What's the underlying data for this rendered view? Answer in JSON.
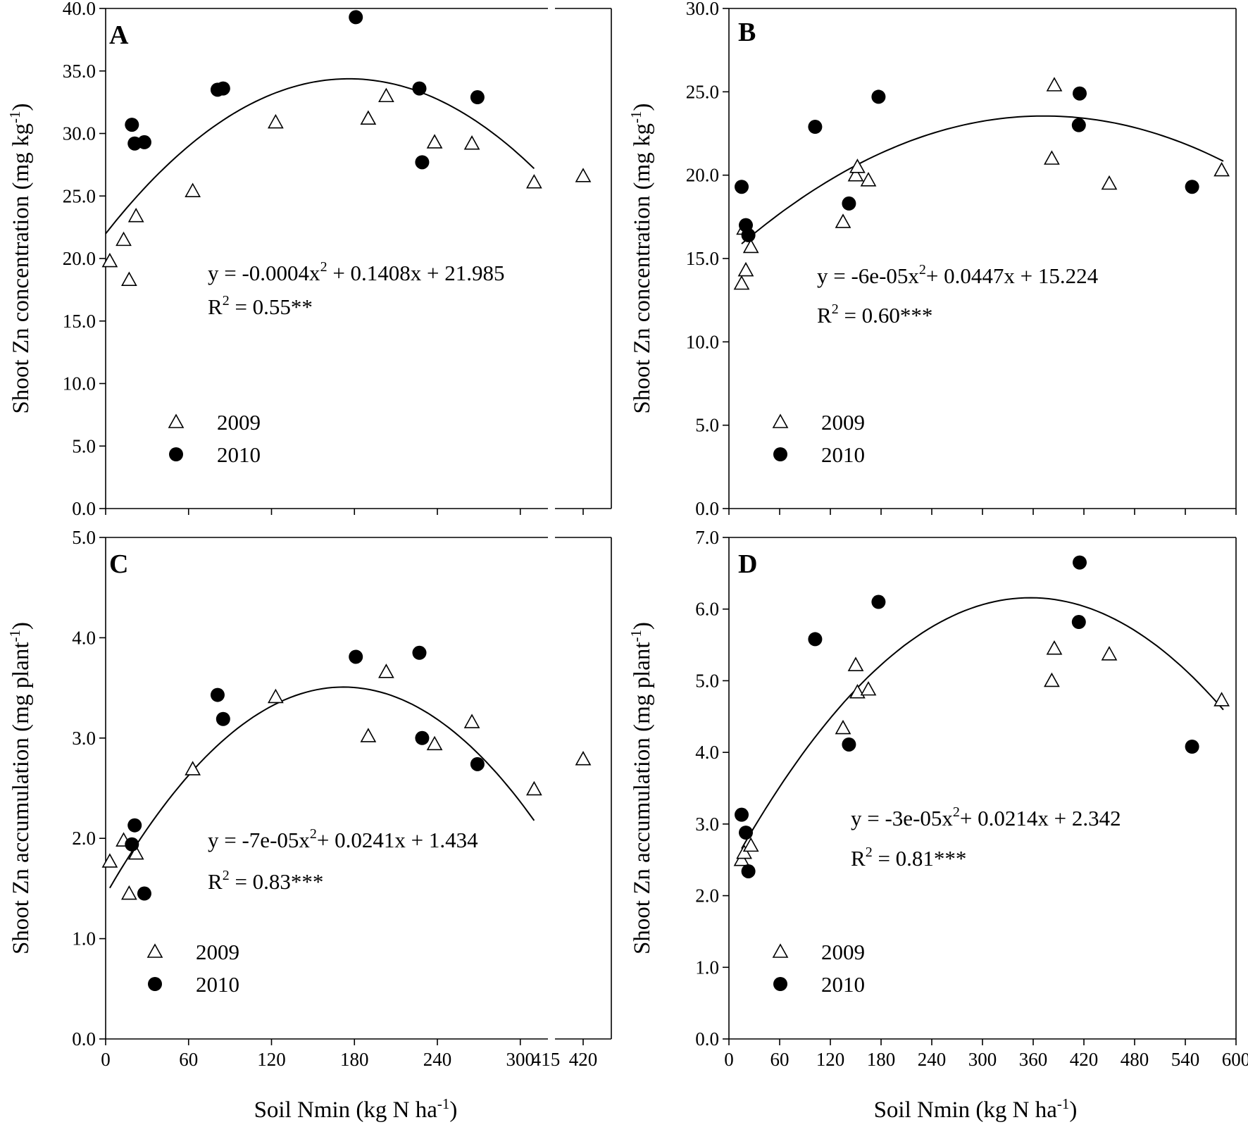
{
  "chart_data": [
    {
      "panel": "A",
      "type": "scatter",
      "ylabel": "Shoot Zn concentration (mg kg-1)",
      "xlabel": "",
      "ylim": [
        0,
        40
      ],
      "yticks": [
        "0.0",
        "5.0",
        "10.0",
        "15.0",
        "20.0",
        "25.0",
        "30.0",
        "35.0",
        "40.0"
      ],
      "xlim": [
        0,
        320
      ],
      "xticks": [
        0,
        60,
        120,
        180,
        240,
        300
      ],
      "break": {
        "label_left": "415",
        "label_right": "420",
        "right_range": [
          410,
          430
        ]
      },
      "equation": "y = -0.0004x",
      "equation_rest": " + 0.1408x + 21.985",
      "r2_value": " = 0.55**",
      "fit": {
        "a": -0.0004,
        "b": 0.1408,
        "c": 21.985,
        "x_range": [
          0,
          310
        ]
      },
      "legend": [
        {
          "name": "2009",
          "marker": "triangle-open"
        },
        {
          "name": "2010",
          "marker": "circle-filled"
        }
      ],
      "series": [
        {
          "name": "2009",
          "marker": "triangle-open",
          "points": [
            [
              3,
              19.8
            ],
            [
              13,
              21.5
            ],
            [
              17,
              18.3
            ],
            [
              22,
              23.4
            ],
            [
              63,
              25.4
            ],
            [
              123,
              30.9
            ],
            [
              190,
              31.2
            ],
            [
              203,
              33.0
            ],
            [
              238,
              29.3
            ],
            [
              265,
              29.2
            ],
            [
              310,
              26.1
            ],
            [
              420,
              26.6
            ]
          ]
        },
        {
          "name": "2010",
          "marker": "circle-filled",
          "points": [
            [
              19,
              30.7
            ],
            [
              21,
              29.2
            ],
            [
              28,
              29.3
            ],
            [
              81,
              33.5
            ],
            [
              85,
              33.6
            ],
            [
              181,
              39.3
            ],
            [
              227,
              33.6
            ],
            [
              229,
              27.7
            ],
            [
              269,
              32.9
            ]
          ]
        }
      ]
    },
    {
      "panel": "B",
      "type": "scatter",
      "ylabel": "Shoot Zn concentration (mg kg-1)",
      "xlabel": "",
      "ylim": [
        0,
        30
      ],
      "yticks": [
        "0.0",
        "5.0",
        "10.0",
        "15.0",
        "20.0",
        "25.0",
        "30.0"
      ],
      "xlim": [
        0,
        600
      ],
      "xticks": [
        0,
        60,
        120,
        180,
        240,
        300,
        360,
        420,
        480,
        540,
        600
      ],
      "equation": "y = -6e-05x",
      "equation_rest": "+ 0.0447x + 15.224",
      "r2_value": " = 0.60***",
      "fit": {
        "a": -6e-05,
        "b": 0.0447,
        "c": 15.224,
        "x_range": [
          15,
          585
        ]
      },
      "legend": [
        {
          "name": "2009",
          "marker": "triangle-open"
        },
        {
          "name": "2010",
          "marker": "circle-filled"
        }
      ],
      "series": [
        {
          "name": "2009",
          "marker": "triangle-open",
          "points": [
            [
              15,
              13.5
            ],
            [
              18,
              16.8
            ],
            [
              20,
              14.3
            ],
            [
              26,
              15.7
            ],
            [
              135,
              17.2
            ],
            [
              150,
              20.0
            ],
            [
              152,
              20.5
            ],
            [
              165,
              19.7
            ],
            [
              382,
              21.0
            ],
            [
              385,
              25.4
            ],
            [
              450,
              19.5
            ],
            [
              583,
              20.3
            ]
          ]
        },
        {
          "name": "2010",
          "marker": "circle-filled",
          "points": [
            [
              15,
              19.3
            ],
            [
              20,
              17.0
            ],
            [
              23,
              16.4
            ],
            [
              102,
              22.9
            ],
            [
              142,
              18.3
            ],
            [
              177,
              24.7
            ],
            [
              414,
              23.0
            ],
            [
              415,
              24.9
            ],
            [
              548,
              19.3
            ]
          ]
        }
      ]
    },
    {
      "panel": "C",
      "type": "scatter",
      "ylabel": "Shoot Zn accumulation (mg plant-1)",
      "xlabel": "Soil Nmin (kg N ha-1)",
      "ylim": [
        0,
        5
      ],
      "yticks": [
        "0.0",
        "1.0",
        "2.0",
        "3.0",
        "4.0",
        "5.0"
      ],
      "xlim": [
        0,
        320
      ],
      "xticks": [
        0,
        60,
        120,
        180,
        240,
        300
      ],
      "break": {
        "label_left": "415",
        "label_right": "420",
        "right_range": [
          410,
          430
        ]
      },
      "equation": "y = -7e-05x",
      "equation_rest": "+ 0.0241x + 1.434",
      "r2_value": " = 0.83***",
      "fit": {
        "a": -7e-05,
        "b": 0.0241,
        "c": 1.434,
        "x_range": [
          3,
          310
        ]
      },
      "legend": [
        {
          "name": "2009",
          "marker": "triangle-open"
        },
        {
          "name": "2010",
          "marker": "circle-filled"
        }
      ],
      "series": [
        {
          "name": "2009",
          "marker": "triangle-open",
          "points": [
            [
              3,
              1.77
            ],
            [
              13,
              1.98
            ],
            [
              17,
              1.45
            ],
            [
              22,
              1.85
            ],
            [
              63,
              2.69
            ],
            [
              123,
              3.41
            ],
            [
              190,
              3.02
            ],
            [
              203,
              3.66
            ],
            [
              238,
              2.94
            ],
            [
              265,
              3.16
            ],
            [
              310,
              2.49
            ],
            [
              420,
              2.79
            ]
          ]
        },
        {
          "name": "2010",
          "marker": "circle-filled",
          "points": [
            [
              19,
              1.94
            ],
            [
              21,
              2.13
            ],
            [
              28,
              1.45
            ],
            [
              81,
              3.43
            ],
            [
              85,
              3.19
            ],
            [
              181,
              3.81
            ],
            [
              227,
              3.85
            ],
            [
              229,
              3.0
            ],
            [
              269,
              2.74
            ]
          ]
        }
      ]
    },
    {
      "panel": "D",
      "type": "scatter",
      "ylabel": "Shoot Zn accumulation (mg plant-1)",
      "xlabel": "Soil Nmin (kg N ha-1)",
      "ylim": [
        0,
        7
      ],
      "yticks": [
        "0.0",
        "1.0",
        "2.0",
        "3.0",
        "4.0",
        "5.0",
        "6.0",
        "7.0"
      ],
      "xlim": [
        0,
        600
      ],
      "xticks": [
        0,
        60,
        120,
        180,
        240,
        300,
        360,
        420,
        480,
        540,
        600
      ],
      "equation": "y = -3e-05x",
      "equation_rest": "+ 0.0214x + 2.342",
      "r2_value": " = 0.81***",
      "fit": {
        "a": -3e-05,
        "b": 0.0214,
        "c": 2.342,
        "x_range": [
          15,
          585
        ]
      },
      "legend": [
        {
          "name": "2009",
          "marker": "triangle-open"
        },
        {
          "name": "2010",
          "marker": "circle-filled"
        }
      ],
      "series": [
        {
          "name": "2009",
          "marker": "triangle-open",
          "points": [
            [
              15,
              2.5
            ],
            [
              18,
              2.6
            ],
            [
              26,
              2.7
            ],
            [
              135,
              4.34
            ],
            [
              150,
              5.22
            ],
            [
              152,
              4.84
            ],
            [
              165,
              4.88
            ],
            [
              382,
              5.0
            ],
            [
              385,
              5.45
            ],
            [
              450,
              5.37
            ],
            [
              583,
              4.73
            ]
          ]
        },
        {
          "name": "2010",
          "marker": "circle-filled",
          "points": [
            [
              15,
              3.13
            ],
            [
              20,
              2.88
            ],
            [
              23,
              2.34
            ],
            [
              102,
              5.58
            ],
            [
              142,
              4.11
            ],
            [
              177,
              6.1
            ],
            [
              414,
              5.82
            ],
            [
              415,
              6.65
            ],
            [
              548,
              4.08
            ]
          ]
        }
      ]
    }
  ],
  "labels": {
    "r2_prefix": "R",
    "squared": "2",
    "sup_minus1": "-1"
  }
}
